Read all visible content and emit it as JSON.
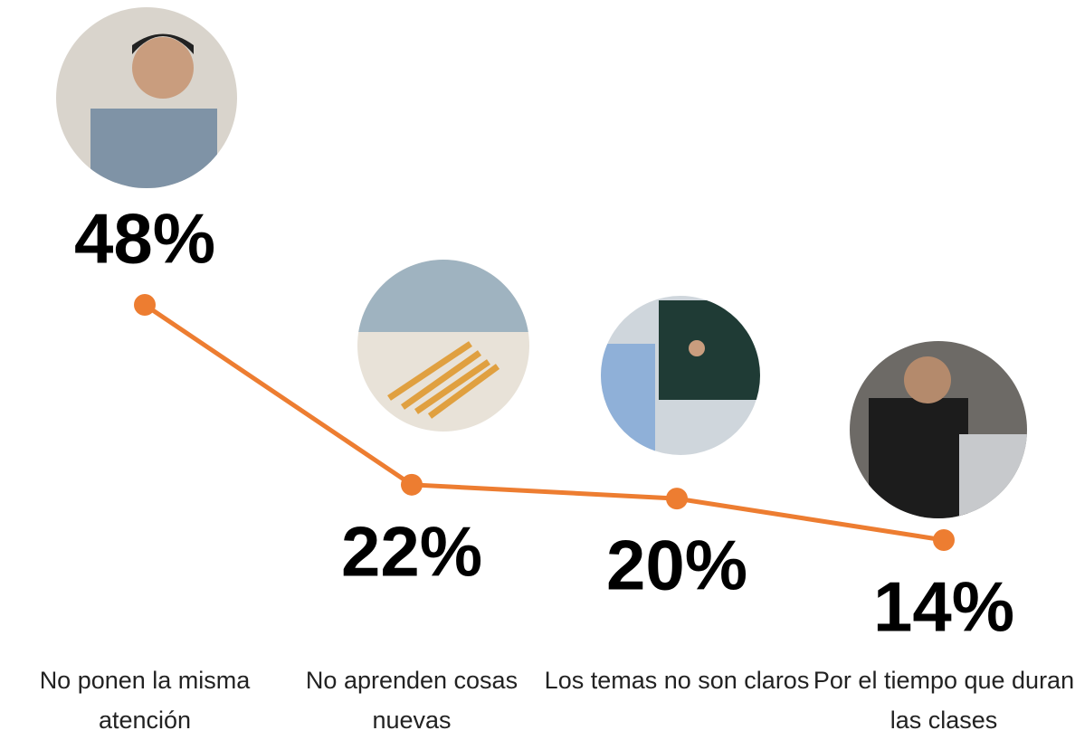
{
  "chart_data": {
    "type": "line",
    "categories": [
      "No ponen la misma atención",
      "No aprenden cosas nuevas",
      "Los temas no son claros",
      "Por el tiempo que duran las clases"
    ],
    "series": [
      {
        "color": "#ed7d31",
        "values": [
          48,
          22,
          20,
          14
        ],
        "value_labels": [
          "48%",
          "22%",
          "20%",
          "14%"
        ]
      }
    ]
  }
}
